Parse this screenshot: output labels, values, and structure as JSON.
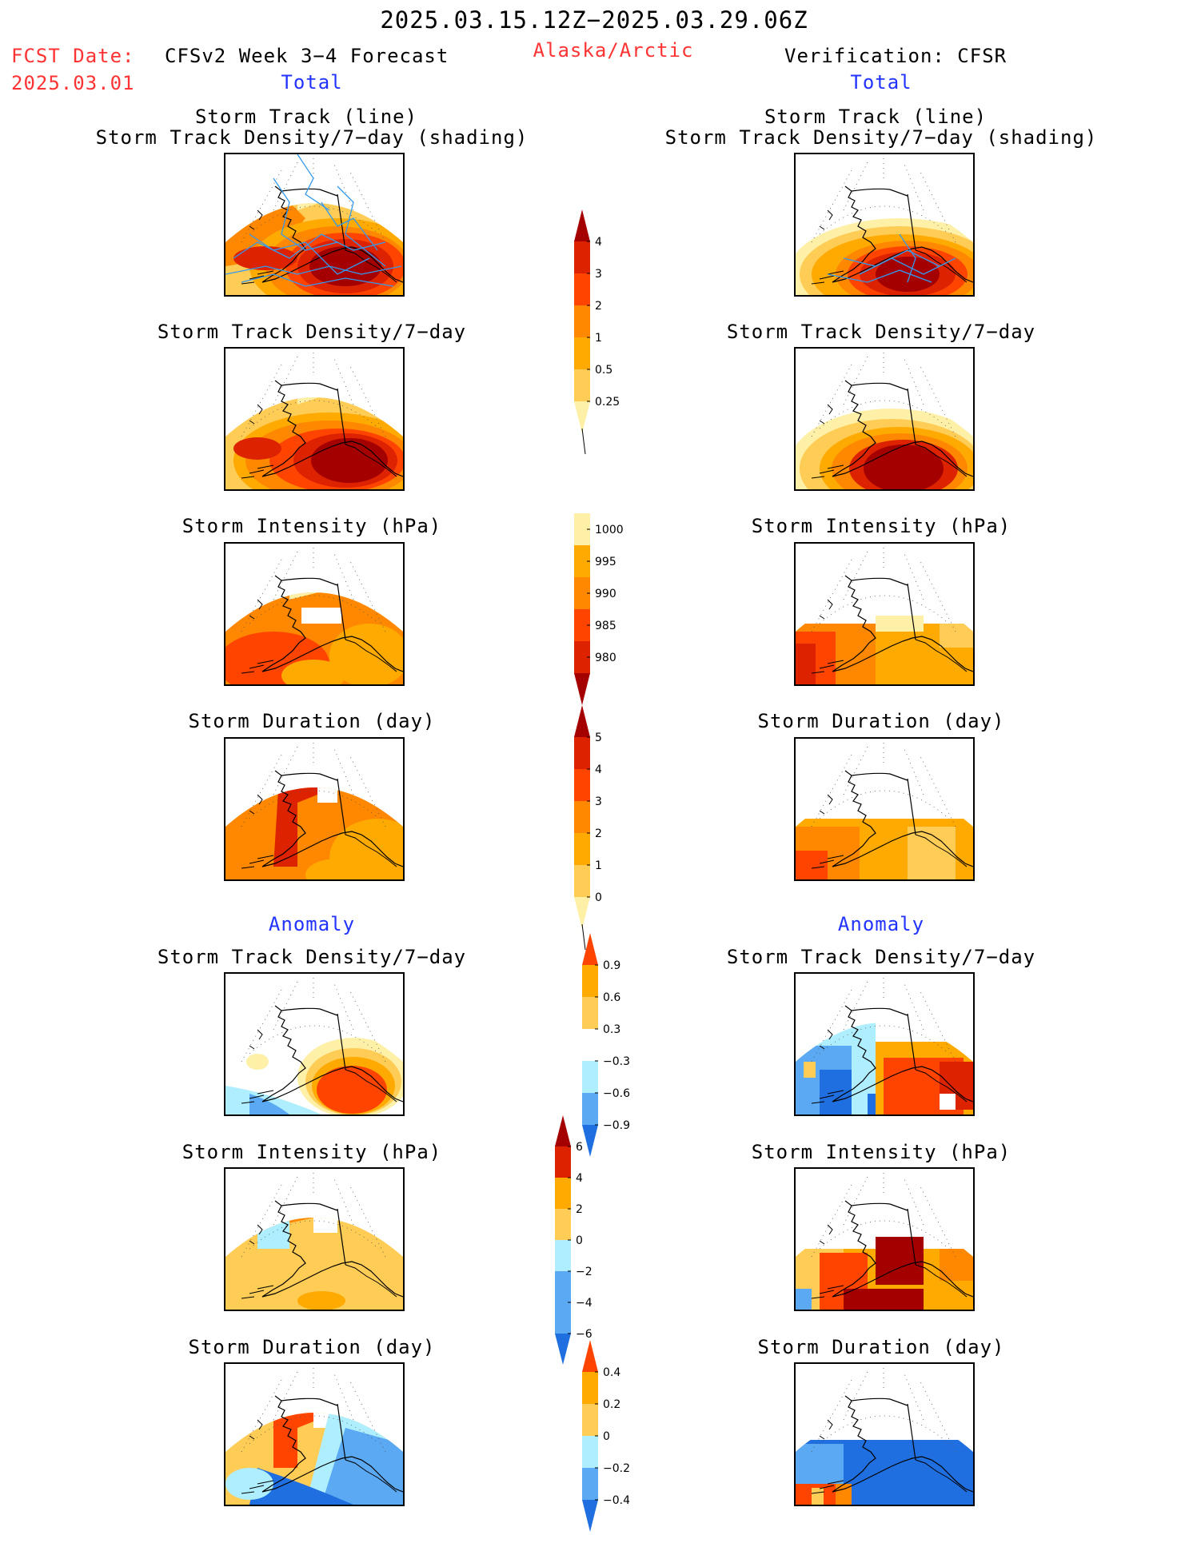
{
  "header": {
    "period": "2025.03.15.12Z−2025.03.29.06Z",
    "fcst_label": "FCST Date:",
    "fcst_date": "2025.03.01",
    "model": "CFSv2 Week 3−4 Forecast",
    "region": "Alaska/Arctic",
    "verification": "Verification: CFSR",
    "left_section": "Total",
    "right_section": "Total",
    "anomaly_left": "Anomaly",
    "anomaly_right": "Anomaly"
  },
  "panel_titles": {
    "track_line": "Storm Track (line)",
    "track_shading": "Storm Track Density/7−day (shading)",
    "density": "Storm Track Density/7−day",
    "intensity": "Storm Intensity (hPa)",
    "duration": "Storm Duration (day)"
  },
  "colorbars": {
    "density_total": [
      "4",
      "3",
      "2",
      "1",
      "0.5",
      "0.25"
    ],
    "intensity_total": [
      "1000",
      "995",
      "990",
      "985",
      "980"
    ],
    "duration_total": [
      "5",
      "4",
      "3",
      "2",
      "1",
      "0"
    ],
    "density_anom": [
      "0.9",
      "0.6",
      "0.3",
      "−0.3",
      "−0.6",
      "−0.9"
    ],
    "intensity_anom": [
      "6",
      "4",
      "2",
      "0",
      "−2",
      "−4",
      "−6"
    ],
    "duration_anom": [
      "0.4",
      "0.2",
      "0",
      "−0.2",
      "−0.4"
    ]
  },
  "colors": {
    "darkred": "#a50000",
    "red": "#dd2200",
    "redorange": "#ff4400",
    "orange": "#ff8800",
    "lightorange": "#ffaa00",
    "yellow": "#ffcc55",
    "paleyellow": "#fff0a8",
    "lightblue": "#aeeeff",
    "midblue": "#5aa9f2",
    "blue": "#1f6fe0",
    "track_line": "#3399ee",
    "title_red": "#ff3333",
    "title_blue": "#2233ff"
  }
}
